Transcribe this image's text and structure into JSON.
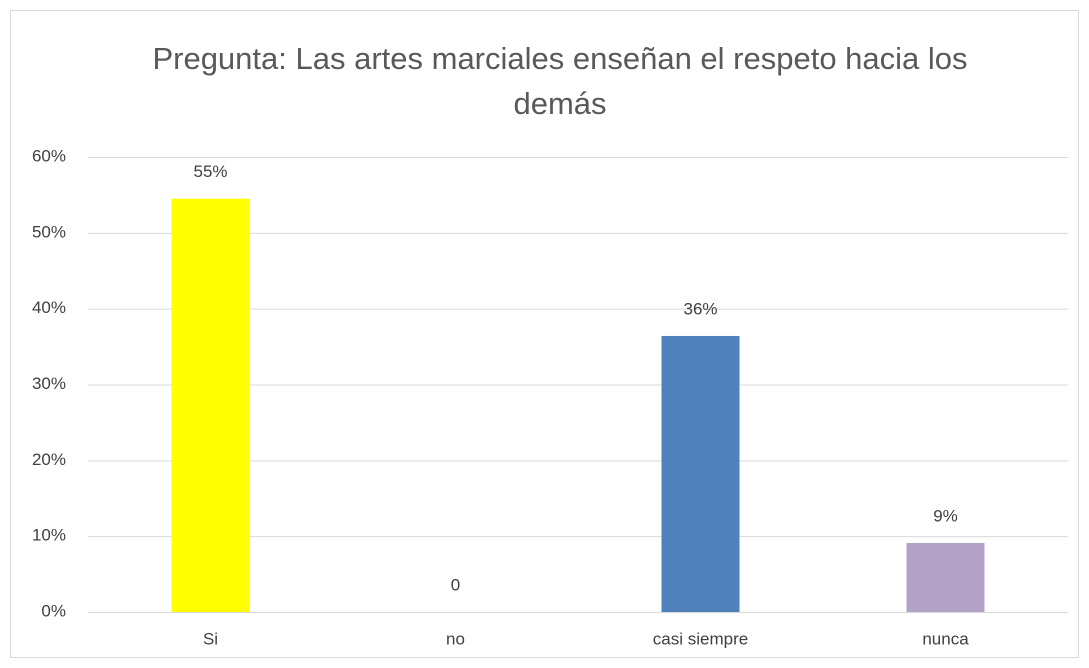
{
  "chart_data": {
    "type": "bar",
    "title": "Pregunta: Las artes marciales enseñan el respeto hacia los demás",
    "categories": [
      "Si",
      "no",
      "casi siempre",
      "nunca"
    ],
    "values": [
      54.5,
      0,
      36.4,
      9.1
    ],
    "value_labels": [
      "55%",
      "0",
      "36%",
      "9%"
    ],
    "colors": [
      "#ffff00",
      "#4f81bd",
      "#4f81bd",
      "#b2a2c7"
    ],
    "ylim": [
      0,
      60
    ],
    "yticks": [
      {
        "value": 0,
        "label": "0%"
      },
      {
        "value": 10,
        "label": "10%"
      },
      {
        "value": 20,
        "label": "20%"
      },
      {
        "value": 30,
        "label": "30%"
      },
      {
        "value": 40,
        "label": "40%"
      },
      {
        "value": 50,
        "label": "50%"
      },
      {
        "value": 60,
        "label": "60%"
      }
    ],
    "grid": true
  }
}
